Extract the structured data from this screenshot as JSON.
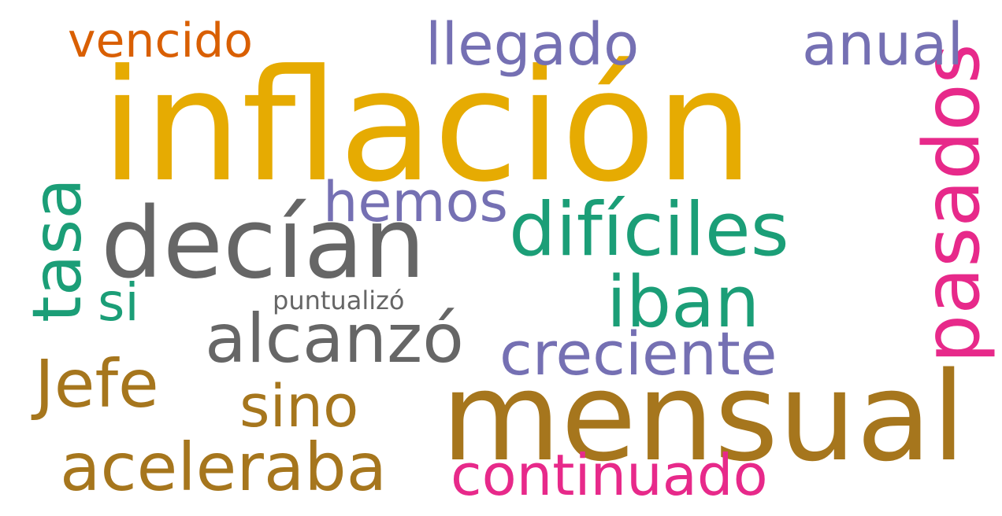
{
  "words": {
    "inflacion": {
      "text": "inflación",
      "color": "#E6AB02"
    },
    "mensual": {
      "text": "mensual",
      "color": "#A6761D"
    },
    "decian": {
      "text": "decían",
      "color": "#666666"
    },
    "dificiles": {
      "text": "difíciles",
      "color": "#1B9E77"
    },
    "pasados": {
      "text": "pasados",
      "color": "#E7298A"
    },
    "tasa": {
      "text": "tasa",
      "color": "#1B9E77"
    },
    "llegado": {
      "text": "llegado",
      "color": "#7570B3"
    },
    "anual": {
      "text": "anual",
      "color": "#7570B3"
    },
    "vencido": {
      "text": "vencido",
      "color": "#D95F02"
    },
    "hemos": {
      "text": "hemos",
      "color": "#7570B3"
    },
    "iban": {
      "text": "iban",
      "color": "#1B9E77"
    },
    "alcanzo": {
      "text": "alcanzó",
      "color": "#666666"
    },
    "creciente": {
      "text": "creciente",
      "color": "#7570B3"
    },
    "jefe": {
      "text": "Jefe",
      "color": "#A6761D"
    },
    "sino": {
      "text": "sino",
      "color": "#A6761D"
    },
    "aceleraba": {
      "text": "aceleraba",
      "color": "#A6761D"
    },
    "continuado": {
      "text": "continuado",
      "color": "#E7298A"
    },
    "si": {
      "text": "si",
      "color": "#1B9E77"
    },
    "puntualizo": {
      "text": "puntualizó",
      "color": "#666666"
    }
  }
}
